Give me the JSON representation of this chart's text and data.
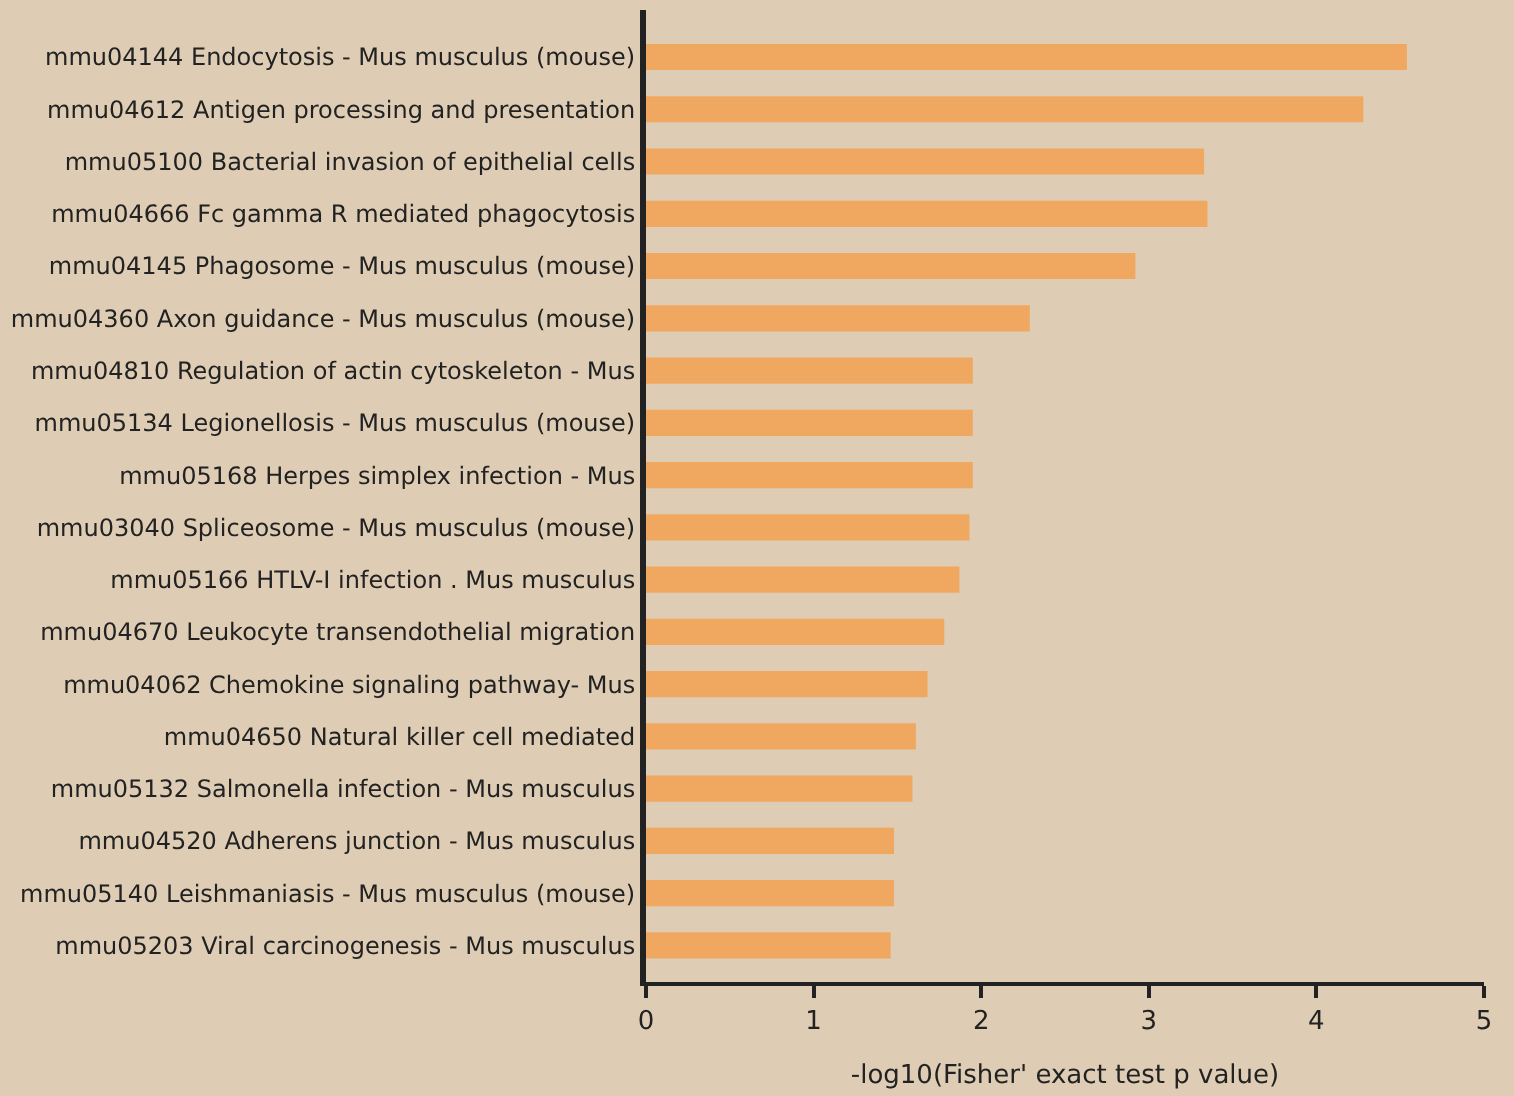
{
  "chart_data": {
    "type": "bar",
    "orientation": "horizontal",
    "xlabel": "-log10(Fisher' exact test p value)",
    "categories": [
      "mmu04144 Endocytosis - Mus musculus (mouse)",
      "mmu04612 Antigen processing and presentation",
      "mmu05100 Bacterial invasion of epithelial cells",
      "mmu04666 Fc gamma R mediated phagocytosis",
      "mmu04145 Phagosome - Mus musculus (mouse)",
      "mmu04360 Axon guidance - Mus musculus (mouse)",
      "mmu04810 Regulation of actin cytoskeleton - Mus",
      "mmu05134 Legionellosis - Mus musculus (mouse)",
      "mmu05168 Herpes simplex infection - Mus",
      "mmu03040 Spliceosome - Mus musculus (mouse)",
      "mmu05166 HTLV-I infection . Mus musculus",
      "mmu04670 Leukocyte transendothelial migration",
      "mmu04062 Chemokine signaling pathway- Mus",
      "mmu04650 Natural killer cell mediated",
      "mmu05132 Salmonella infection - Mus musculus",
      "mmu04520 Adherens junction - Mus musculus",
      "mmu05140 Leishmaniasis - Mus musculus (mouse)",
      "mmu05203 Viral carcinogenesis - Mus musculus"
    ],
    "values": [
      4.54,
      4.28,
      3.33,
      3.35,
      2.92,
      2.29,
      1.95,
      1.95,
      1.95,
      1.93,
      1.87,
      1.78,
      1.68,
      1.61,
      1.59,
      1.48,
      1.48,
      1.46
    ],
    "color": "#f0a860",
    "xlim": [
      0,
      5
    ],
    "xticks": [
      0,
      1,
      2,
      3,
      4,
      5
    ],
    "grid": false,
    "legend": false
  }
}
